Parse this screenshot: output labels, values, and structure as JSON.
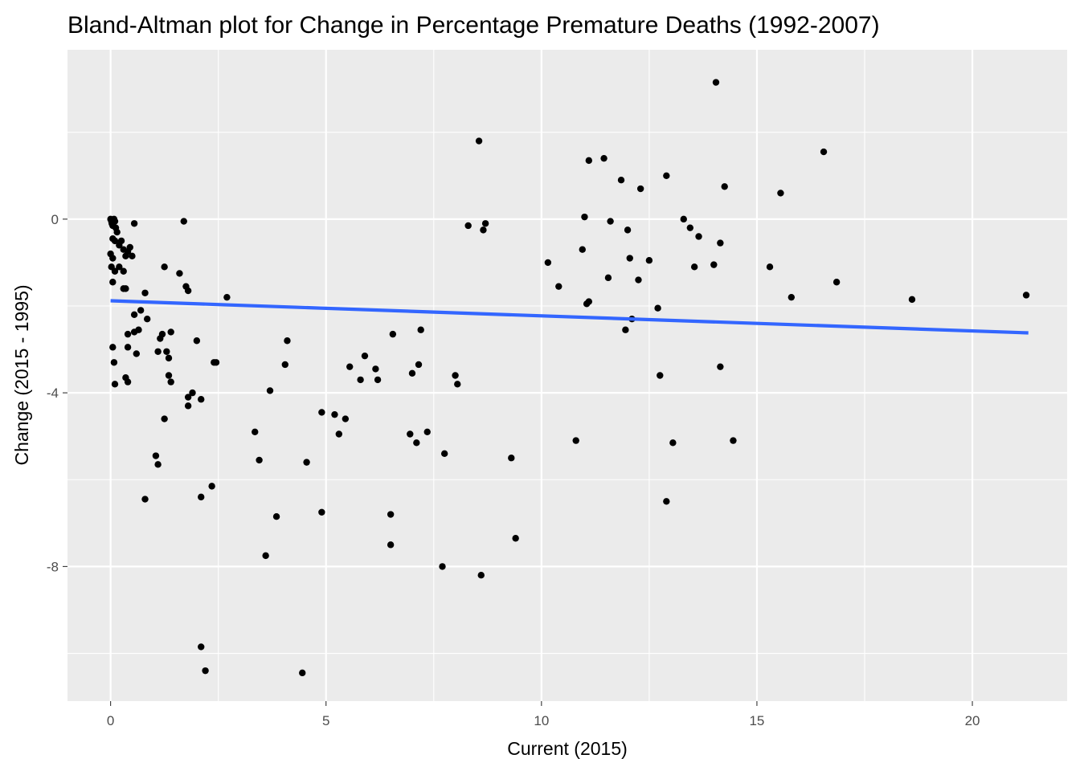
{
  "colors": {
    "panel_background": "#ebebeb",
    "grid_major": "#ffffff",
    "point": "#000000",
    "trend_line": "#3366ff",
    "tick_label": "#4d4d4d"
  },
  "chart_data": {
    "type": "scatter",
    "title": "Bland-Altman plot for Change in Percentage Premature Deaths (1992-2007)",
    "xlabel": "Current (2015)",
    "ylabel": "Change (2015 - 1995)",
    "xlim": [
      -1.0,
      22.2
    ],
    "ylim": [
      -11.1,
      3.9
    ],
    "x_ticks": [
      0,
      5,
      10,
      15,
      20
    ],
    "x_tick_labels": [
      "0",
      "5",
      "10",
      "15",
      "20"
    ],
    "y_ticks": [
      0,
      -4,
      -8
    ],
    "y_tick_labels": [
      "0",
      "-4",
      "-8"
    ],
    "grid": true,
    "legend": "none",
    "trend_line": {
      "method": "linear",
      "x": [
        0.0,
        21.3
      ],
      "y": [
        -1.88,
        -2.62
      ]
    },
    "points": [
      {
        "x": 0.0,
        "y": 0.0
      },
      {
        "x": 0.02,
        "y": -0.05
      },
      {
        "x": 0.03,
        "y": -0.1
      },
      {
        "x": 0.05,
        "y": -0.15
      },
      {
        "x": 0.08,
        "y": 0.0
      },
      {
        "x": 0.1,
        "y": -0.05
      },
      {
        "x": 0.12,
        "y": -0.2
      },
      {
        "x": 0.15,
        "y": -0.3
      },
      {
        "x": 0.05,
        "y": -0.45
      },
      {
        "x": 0.1,
        "y": -0.5
      },
      {
        "x": 0.2,
        "y": -0.6
      },
      {
        "x": 0.25,
        "y": -0.5
      },
      {
        "x": 0.3,
        "y": -0.7
      },
      {
        "x": 0.0,
        "y": -0.8
      },
      {
        "x": 0.05,
        "y": -0.9
      },
      {
        "x": 0.02,
        "y": -1.1
      },
      {
        "x": 0.1,
        "y": -1.2
      },
      {
        "x": 0.05,
        "y": -1.45
      },
      {
        "x": 0.2,
        "y": -1.1
      },
      {
        "x": 0.3,
        "y": -1.2
      },
      {
        "x": 0.35,
        "y": -0.85
      },
      {
        "x": 0.4,
        "y": -0.75
      },
      {
        "x": 0.45,
        "y": -0.65
      },
      {
        "x": 0.5,
        "y": -0.85
      },
      {
        "x": 0.55,
        "y": -0.1
      },
      {
        "x": 0.3,
        "y": -1.6
      },
      {
        "x": 0.35,
        "y": -1.6
      },
      {
        "x": 0.05,
        "y": -2.95
      },
      {
        "x": 0.08,
        "y": -3.3
      },
      {
        "x": 0.1,
        "y": -3.8
      },
      {
        "x": 0.35,
        "y": -3.65
      },
      {
        "x": 0.4,
        "y": -3.75
      },
      {
        "x": 0.4,
        "y": -2.65
      },
      {
        "x": 0.4,
        "y": -2.95
      },
      {
        "x": 0.55,
        "y": -2.6
      },
      {
        "x": 0.55,
        "y": -2.2
      },
      {
        "x": 0.65,
        "y": -2.55
      },
      {
        "x": 0.6,
        "y": -3.1
      },
      {
        "x": 0.7,
        "y": -2.1
      },
      {
        "x": 0.8,
        "y": -1.7
      },
      {
        "x": 0.85,
        "y": -2.3
      },
      {
        "x": 0.8,
        "y": -6.45
      },
      {
        "x": 1.05,
        "y": -5.45
      },
      {
        "x": 1.1,
        "y": -5.65
      },
      {
        "x": 1.1,
        "y": -3.05
      },
      {
        "x": 1.15,
        "y": -2.75
      },
      {
        "x": 1.2,
        "y": -2.65
      },
      {
        "x": 1.25,
        "y": -1.1
      },
      {
        "x": 1.25,
        "y": -4.6
      },
      {
        "x": 1.3,
        "y": -3.05
      },
      {
        "x": 1.35,
        "y": -3.6
      },
      {
        "x": 1.35,
        "y": -3.2
      },
      {
        "x": 1.4,
        "y": -3.75
      },
      {
        "x": 1.4,
        "y": -2.6
      },
      {
        "x": 1.6,
        "y": -1.25
      },
      {
        "x": 1.7,
        "y": -0.05
      },
      {
        "x": 1.75,
        "y": -1.55
      },
      {
        "x": 1.8,
        "y": -1.65
      },
      {
        "x": 1.8,
        "y": -4.1
      },
      {
        "x": 1.8,
        "y": -4.3
      },
      {
        "x": 1.9,
        "y": -4.0
      },
      {
        "x": 2.0,
        "y": -2.8
      },
      {
        "x": 2.1,
        "y": -4.15
      },
      {
        "x": 2.1,
        "y": -6.4
      },
      {
        "x": 2.1,
        "y": -9.85
      },
      {
        "x": 2.2,
        "y": -10.4
      },
      {
        "x": 2.35,
        "y": -6.15
      },
      {
        "x": 2.4,
        "y": -3.3
      },
      {
        "x": 2.45,
        "y": -3.3
      },
      {
        "x": 2.7,
        "y": -1.8
      },
      {
        "x": 3.35,
        "y": -4.9
      },
      {
        "x": 3.45,
        "y": -5.55
      },
      {
        "x": 3.6,
        "y": -7.75
      },
      {
        "x": 3.7,
        "y": -3.95
      },
      {
        "x": 3.85,
        "y": -6.85
      },
      {
        "x": 4.05,
        "y": -3.35
      },
      {
        "x": 4.1,
        "y": -2.8
      },
      {
        "x": 4.45,
        "y": -10.45
      },
      {
        "x": 4.55,
        "y": -5.6
      },
      {
        "x": 4.9,
        "y": -4.45
      },
      {
        "x": 4.9,
        "y": -6.75
      },
      {
        "x": 5.2,
        "y": -4.5
      },
      {
        "x": 5.3,
        "y": -4.95
      },
      {
        "x": 5.45,
        "y": -4.6
      },
      {
        "x": 5.55,
        "y": -3.4
      },
      {
        "x": 5.8,
        "y": -3.7
      },
      {
        "x": 5.9,
        "y": -3.15
      },
      {
        "x": 6.15,
        "y": -3.45
      },
      {
        "x": 6.2,
        "y": -3.7
      },
      {
        "x": 6.5,
        "y": -6.8
      },
      {
        "x": 6.5,
        "y": -7.5
      },
      {
        "x": 6.55,
        "y": -2.65
      },
      {
        "x": 6.95,
        "y": -4.95
      },
      {
        "x": 7.0,
        "y": -3.55
      },
      {
        "x": 7.1,
        "y": -5.15
      },
      {
        "x": 7.15,
        "y": -3.35
      },
      {
        "x": 7.2,
        "y": -2.55
      },
      {
        "x": 7.35,
        "y": -4.9
      },
      {
        "x": 7.7,
        "y": -8.0
      },
      {
        "x": 7.75,
        "y": -5.4
      },
      {
        "x": 8.0,
        "y": -3.6
      },
      {
        "x": 8.05,
        "y": -3.8
      },
      {
        "x": 8.3,
        "y": -0.15
      },
      {
        "x": 8.55,
        "y": 1.8
      },
      {
        "x": 8.6,
        "y": -8.2
      },
      {
        "x": 8.65,
        "y": -0.25
      },
      {
        "x": 8.7,
        "y": -0.1
      },
      {
        "x": 9.3,
        "y": -5.5
      },
      {
        "x": 9.4,
        "y": -7.35
      },
      {
        "x": 10.15,
        "y": -1.0
      },
      {
        "x": 10.4,
        "y": -1.55
      },
      {
        "x": 10.8,
        "y": -5.1
      },
      {
        "x": 10.95,
        "y": -0.7
      },
      {
        "x": 11.0,
        "y": 0.05
      },
      {
        "x": 11.05,
        "y": -1.95
      },
      {
        "x": 11.1,
        "y": -1.9
      },
      {
        "x": 11.1,
        "y": 1.35
      },
      {
        "x": 11.45,
        "y": 1.4
      },
      {
        "x": 11.55,
        "y": -1.35
      },
      {
        "x": 11.6,
        "y": -0.05
      },
      {
        "x": 11.85,
        "y": 0.9
      },
      {
        "x": 11.95,
        "y": -2.55
      },
      {
        "x": 12.0,
        "y": -0.25
      },
      {
        "x": 12.05,
        "y": -0.9
      },
      {
        "x": 12.1,
        "y": -2.3
      },
      {
        "x": 12.25,
        "y": -1.4
      },
      {
        "x": 12.3,
        "y": 0.7
      },
      {
        "x": 12.5,
        "y": -0.95
      },
      {
        "x": 12.7,
        "y": -2.05
      },
      {
        "x": 12.75,
        "y": -3.6
      },
      {
        "x": 12.9,
        "y": 1.0
      },
      {
        "x": 12.9,
        "y": -6.5
      },
      {
        "x": 13.05,
        "y": -5.15
      },
      {
        "x": 13.3,
        "y": 0.0
      },
      {
        "x": 13.45,
        "y": -0.2
      },
      {
        "x": 13.55,
        "y": -1.1
      },
      {
        "x": 13.65,
        "y": -0.4
      },
      {
        "x": 14.0,
        "y": -1.05
      },
      {
        "x": 14.05,
        "y": 3.15
      },
      {
        "x": 14.15,
        "y": -0.55
      },
      {
        "x": 14.15,
        "y": -3.4
      },
      {
        "x": 14.25,
        "y": 0.75
      },
      {
        "x": 14.45,
        "y": -5.1
      },
      {
        "x": 15.3,
        "y": -1.1
      },
      {
        "x": 15.55,
        "y": 0.6
      },
      {
        "x": 15.8,
        "y": -1.8
      },
      {
        "x": 16.55,
        "y": 1.55
      },
      {
        "x": 16.85,
        "y": -1.45
      },
      {
        "x": 18.6,
        "y": -1.85
      },
      {
        "x": 21.25,
        "y": -1.75
      }
    ]
  }
}
